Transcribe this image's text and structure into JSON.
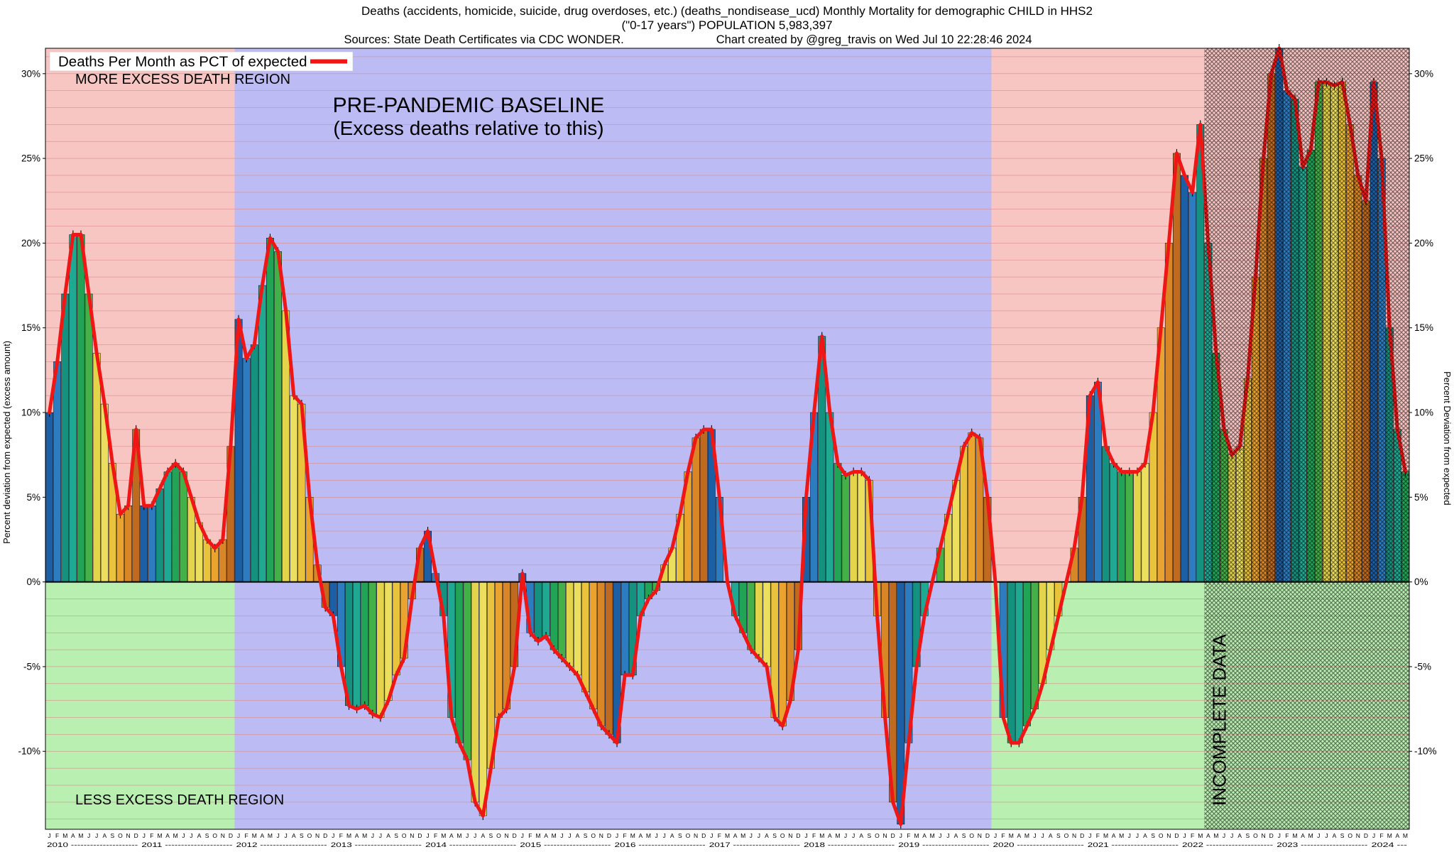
{
  "header": {
    "title_line1": "Deaths (accidents, homicide, suicide, drug overdoses, etc.) (deaths_nondisease_ucd) Monthly Mortality for demographic CHILD in HHS2",
    "title_line2": "(\"0-17 years\") POPULATION 5,983,397",
    "sources": "Sources: State Death Certificates via CDC WONDER.",
    "created": "Chart created by @greg_travis on Wed Jul 10 22:28:46 2024"
  },
  "legend": {
    "label": "Deaths Per Month as PCT of expected"
  },
  "annotations": {
    "more_excess": "MORE EXCESS DEATH REGION",
    "baseline_title": "PRE-PANDEMIC BASELINE",
    "baseline_subtitle": "(Excess deaths relative to this)",
    "less_excess": "LESS EXCESS DEATH REGION",
    "incomplete": "INCOMPLETE DATA"
  },
  "axes": {
    "y_left_label": "Percent deviation from expected (excess amount)",
    "y_right_label": "Percent Deviation from expected",
    "y_ticks": [
      30,
      25,
      20,
      15,
      10,
      5,
      0,
      -5,
      -10
    ],
    "month_letters": [
      "J",
      "F",
      "M",
      "A",
      "M",
      "J",
      "J",
      "A",
      "S",
      "O",
      "N",
      "D"
    ],
    "years": [
      2010,
      2011,
      2012,
      2013,
      2014,
      2015,
      2016,
      2017,
      2018,
      2019,
      2020,
      2021,
      2022,
      2023,
      2024
    ]
  },
  "chart_data": {
    "type": "bar",
    "line_overlay": true,
    "series_label": "Deaths Per Month as PCT of expected",
    "unit": "percent deviation from expected",
    "start_month": "2010-01",
    "end_month": "2024-05",
    "y_range": [
      -14.6,
      31.5
    ],
    "values": [
      10.0,
      13.0,
      17.0,
      20.5,
      20.5,
      17.0,
      13.5,
      10.5,
      7.0,
      4.0,
      4.5,
      9.0,
      4.5,
      4.5,
      5.5,
      6.5,
      7.0,
      6.5,
      5.0,
      3.5,
      2.5,
      2.0,
      2.5,
      8.0,
      15.5,
      13.2,
      14.0,
      17.5,
      20.3,
      19.5,
      16.0,
      11.0,
      10.5,
      5.0,
      1.0,
      -1.5,
      -2.0,
      -5.0,
      -7.3,
      -7.5,
      -7.3,
      -7.8,
      -8.0,
      -7.0,
      -5.5,
      -4.5,
      -1.0,
      2.0,
      3.0,
      0.5,
      -2.0,
      -8.0,
      -9.5,
      -10.5,
      -13.0,
      -13.8,
      -11.0,
      -8.0,
      -7.5,
      -5.0,
      0.5,
      -3.0,
      -3.5,
      -3.2,
      -4.0,
      -4.5,
      -5.0,
      -5.5,
      -6.5,
      -7.5,
      -8.5,
      -9.0,
      -9.5,
      -5.5,
      -5.5,
      -2.0,
      -1.0,
      -0.5,
      1.0,
      2.0,
      4.0,
      6.5,
      8.5,
      9.0,
      9.0,
      5.0,
      0.0,
      -2.0,
      -3.0,
      -4.0,
      -4.5,
      -5.0,
      -8.0,
      -8.5,
      -7.0,
      -4.0,
      5.0,
      10.0,
      14.5,
      10.0,
      7.0,
      6.3,
      6.5,
      6.5,
      6.0,
      -2.0,
      -8.0,
      -13.0,
      -14.3,
      -9.5,
      -5.0,
      -2.0,
      0.0,
      2.0,
      4.0,
      6.0,
      8.0,
      8.8,
      8.5,
      5.0,
      0.0,
      -8.0,
      -9.5,
      -9.5,
      -8.5,
      -7.5,
      -6.0,
      -4.0,
      -2.0,
      0.0,
      2.0,
      5.0,
      11.0,
      11.8,
      8.0,
      7.0,
      6.5,
      6.5,
      6.5,
      7.0,
      10.0,
      15.0,
      20.0,
      25.3,
      24.0,
      23.0,
      27.0,
      20.0,
      13.5,
      9.0,
      7.5,
      8.0,
      12.0,
      18.0,
      25.0,
      30.0,
      31.5,
      29.0,
      28.5,
      24.5,
      25.5,
      29.5,
      29.5,
      29.3,
      29.5,
      27.0,
      24.0,
      22.5,
      29.5,
      25.0,
      15.0,
      9.0,
      6.5
    ],
    "baseline_start_index": 24,
    "baseline_end_index": 120,
    "incomplete_start_index": 147,
    "month_colors": [
      "#1d5fa5",
      "#2e7cc0",
      "#15917f",
      "#1fa892",
      "#22a457",
      "#44b148",
      "#e3d44b",
      "#ecdf5e",
      "#e9c33c",
      "#eaa32e",
      "#d98627",
      "#bf6a1e"
    ],
    "colors": {
      "line": "#ef1616",
      "grid": "#d98f8f",
      "zero_line": "#000000",
      "excess_region": "#f8c6c2",
      "less_region": "#b9efb0",
      "baseline_region": "#bcbbf4",
      "legend_box": "#ffffff"
    }
  }
}
